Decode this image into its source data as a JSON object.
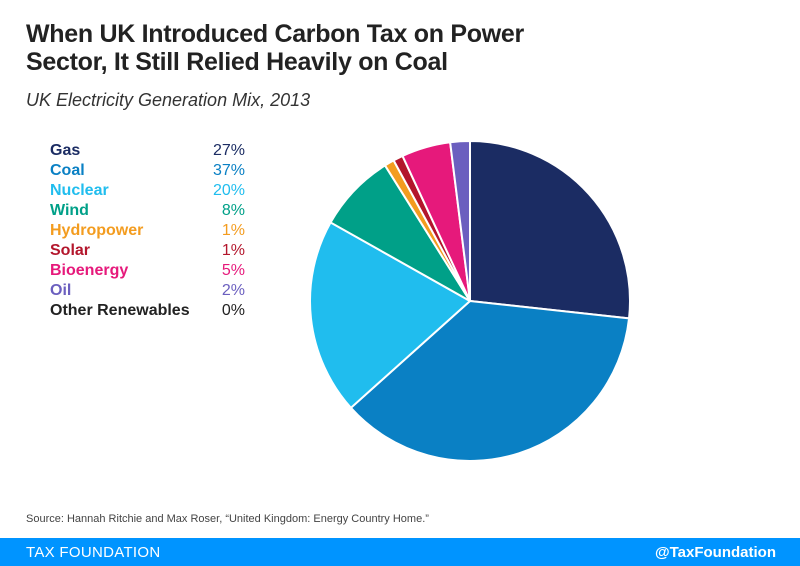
{
  "chart_data": {
    "type": "pie",
    "title": "When UK Introduced Carbon Tax on Power Sector, It Still Relied Heavily on Coal",
    "subtitle": "UK Electricity Generation Mix, 2013",
    "unit": "%",
    "slices": [
      {
        "name": "Gas",
        "value": 27,
        "label": "27%",
        "color": "#1b2c63"
      },
      {
        "name": "Coal",
        "value": 37,
        "label": "37%",
        "color": "#0a80c4"
      },
      {
        "name": "Nuclear",
        "value": 20,
        "label": "20%",
        "color": "#20bdee"
      },
      {
        "name": "Wind",
        "value": 8,
        "label": "8%",
        "color": "#00a088"
      },
      {
        "name": "Hydropower",
        "value": 1,
        "label": "1%",
        "color": "#f39c1f"
      },
      {
        "name": "Solar",
        "value": 1,
        "label": "1%",
        "color": "#b3162c"
      },
      {
        "name": "Bioenergy",
        "value": 5,
        "label": "5%",
        "color": "#e6197b"
      },
      {
        "name": "Oil",
        "value": 2,
        "label": "2%",
        "color": "#6b5fbf"
      },
      {
        "name": "Other Renewables",
        "value": 0,
        "label": "0%",
        "color": "#222222"
      }
    ],
    "legend": "left"
  },
  "source": "Source: Hannah Ritchie and Max Roser, “United Kingdom: Energy Country Home.”",
  "footer": {
    "brand": "TAX FOUNDATION",
    "handle": "@TaxFoundation",
    "color": "#0094ff"
  }
}
